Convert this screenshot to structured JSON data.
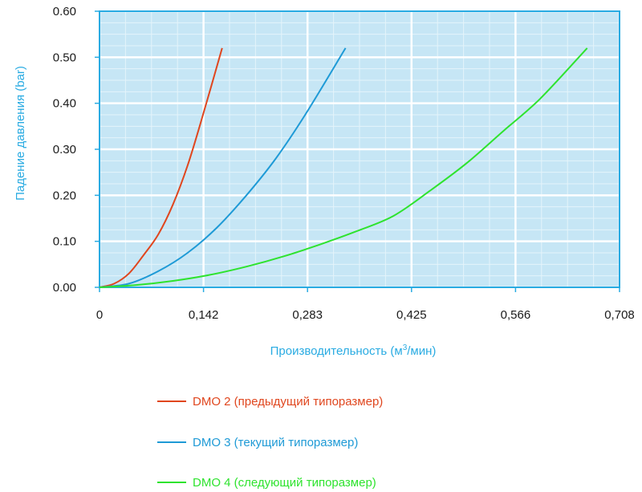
{
  "chart_data": {
    "type": "line",
    "title": "",
    "xlabel_main": "Производительность (м",
    "xlabel_sup": "3",
    "xlabel_end": "/мин)",
    "ylabel": "Падение давления (bar)",
    "xlim": [
      0,
      0.708
    ],
    "ylim": [
      0,
      0.6
    ],
    "xtick_labels": [
      "0",
      "0,142",
      "0,283",
      "0,425",
      "0,566",
      "0,708"
    ],
    "xtick_values": [
      0,
      0.1416,
      0.2832,
      0.4248,
      0.5664,
      0.708
    ],
    "ytick_labels": [
      "0.00",
      "0.10",
      "0.20",
      "0.30",
      "0.40",
      "0.50",
      "0.60"
    ],
    "ytick_values": [
      0,
      0.1,
      0.2,
      0.3,
      0.4,
      0.5,
      0.6
    ],
    "grid": true,
    "legend_position": "bottom",
    "series": [
      {
        "name": "DMO 2 (предыдущий типоразмер)",
        "color": "#e0461e",
        "x": [
          0,
          0.02,
          0.04,
          0.06,
          0.08,
          0.1,
          0.12,
          0.14,
          0.167
        ],
        "y": [
          0,
          0.008,
          0.03,
          0.07,
          0.115,
          0.18,
          0.265,
          0.37,
          0.52
        ]
      },
      {
        "name": "DMO 3 (текущий типоразмер)",
        "color": "#1e9ad6",
        "x": [
          0,
          0.04,
          0.08,
          0.12,
          0.16,
          0.2,
          0.24,
          0.28,
          0.335
        ],
        "y": [
          0,
          0.008,
          0.035,
          0.075,
          0.13,
          0.2,
          0.28,
          0.375,
          0.52
        ]
      },
      {
        "name": "DMO 4 (следующий типоразмер)",
        "color": "#2ee32e",
        "x": [
          0,
          0.05,
          0.1,
          0.15,
          0.2,
          0.25,
          0.3,
          0.35,
          0.4,
          0.45,
          0.5,
          0.55,
          0.6,
          0.664
        ],
        "y": [
          0,
          0.005,
          0.014,
          0.027,
          0.045,
          0.067,
          0.093,
          0.122,
          0.155,
          0.21,
          0.27,
          0.34,
          0.41,
          0.52
        ]
      }
    ]
  },
  "colors": {
    "plot_background": "#c6e6f5",
    "axis_color": "#29abe2",
    "major_grid": "#ffffff",
    "minor_grid": "#e4f4fb"
  }
}
